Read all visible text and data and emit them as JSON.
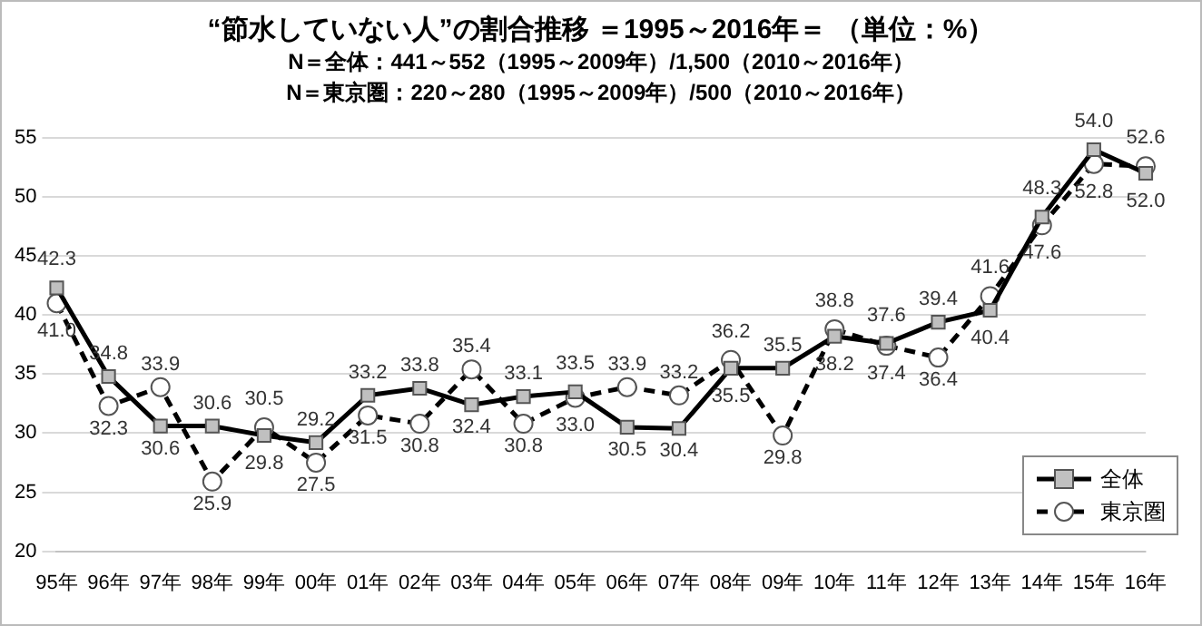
{
  "chart_data": {
    "type": "line",
    "title": "“節水していない人”の割合推移 ＝1995～2016年＝ （単位：%）",
    "subtitle": "N＝全体：441～552（1995～2009年）/1,500（2010～2016年）\nN＝東京圏：220～280（1995～2009年）/500（2010～2016年）",
    "categories": [
      "95年",
      "96年",
      "97年",
      "98年",
      "99年",
      "00年",
      "01年",
      "02年",
      "03年",
      "04年",
      "05年",
      "06年",
      "07年",
      "08年",
      "09年",
      "10年",
      "11年",
      "12年",
      "13年",
      "14年",
      "15年",
      "16年"
    ],
    "series": [
      {
        "name": "全体",
        "color": "#000000",
        "marker": "square",
        "line_style": "solid",
        "values": [
          42.3,
          34.8,
          30.6,
          30.6,
          29.8,
          29.2,
          33.2,
          33.8,
          32.4,
          33.1,
          33.5,
          30.5,
          30.4,
          35.5,
          35.5,
          38.2,
          37.6,
          39.4,
          40.4,
          48.3,
          54.0,
          52.0
        ],
        "value_labels": [
          "42.3",
          "34.8",
          "30.6",
          "30.6",
          "29.8",
          "29.2",
          "33.2",
          "33.8",
          "32.4",
          "33.1",
          "33.5",
          "30.5",
          "30.4",
          "35.5",
          "35.5",
          "38.2",
          "37.6",
          "39.4",
          "40.4",
          "48.3",
          "54.0",
          "52.0"
        ]
      },
      {
        "name": "東京圏",
        "color": "#000000",
        "marker": "circle",
        "line_style": "dashed",
        "values": [
          41.0,
          32.3,
          33.9,
          25.9,
          30.5,
          27.5,
          31.5,
          30.8,
          35.4,
          30.8,
          33.0,
          33.9,
          33.2,
          36.2,
          29.8,
          38.8,
          37.4,
          36.4,
          41.6,
          47.6,
          52.8,
          52.6
        ],
        "value_labels": [
          "41.0",
          "32.3",
          "33.9",
          "25.9",
          "30.5",
          "27.5",
          "31.5",
          "30.8",
          "35.4",
          "30.8",
          "33.0",
          "33.9",
          "33.2",
          "36.2",
          "29.8",
          "38.8",
          "37.4",
          "36.4",
          "41.6",
          "47.6",
          "52.8",
          "52.6"
        ]
      }
    ],
    "ylim": [
      20,
      55
    ],
    "yticks": [
      20,
      25,
      30,
      35,
      40,
      45,
      50,
      55
    ],
    "grid": "y",
    "legend": "bottom right"
  }
}
